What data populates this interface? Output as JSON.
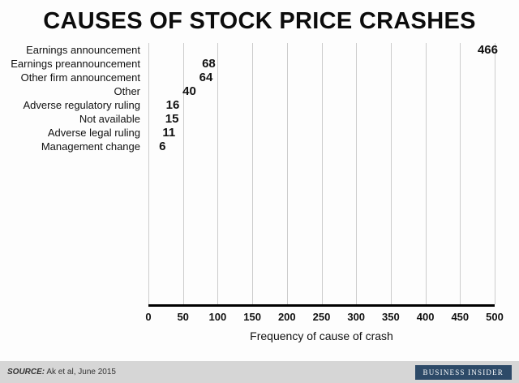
{
  "title": "CAUSES OF STOCK PRICE CRASHES",
  "chart_data": {
    "type": "bar",
    "orientation": "horizontal",
    "title": "CAUSES OF STOCK PRICE CRASHES",
    "categories": [
      "Earnings announcement",
      "Earnings preannouncement",
      "Other firm announcement",
      "Other",
      "Adverse regulatory ruling",
      "Not available",
      "Adverse legal ruling",
      "Management change"
    ],
    "values": [
      466,
      68,
      64,
      40,
      16,
      15,
      11,
      6
    ],
    "xlabel": "Frequency of cause of crash",
    "ylabel": "",
    "xlim": [
      0,
      500
    ],
    "xticks": [
      0,
      50,
      100,
      150,
      200,
      250,
      300,
      350,
      400,
      450,
      500
    ],
    "grid": true,
    "bar_color": "#8757ba",
    "gridline_color": "#cccccc"
  },
  "footer": {
    "source_label": "SOURCE:",
    "source_text": " Ak et al, June 2015",
    "brand": "BUSINESS INSIDER"
  }
}
